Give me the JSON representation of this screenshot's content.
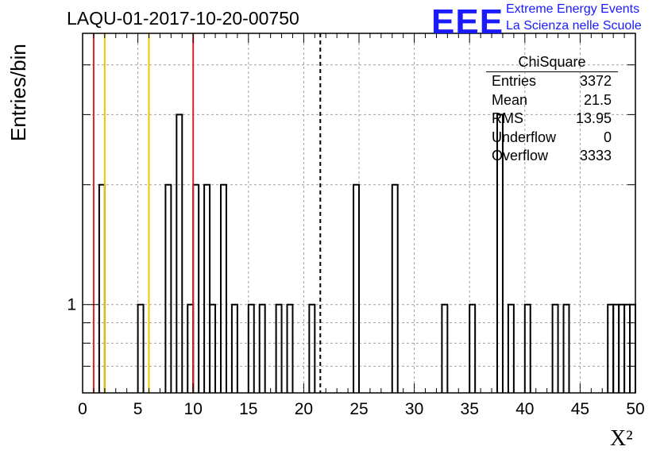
{
  "header": {
    "title": "LAQU-01-2017-10-20-00750",
    "logo_text": "EEE",
    "logo_line1": "Extreme Energy Events",
    "logo_line2": "La Scienza nelle Scuole"
  },
  "stats_box": {
    "title": "ChiSquare",
    "rows": [
      {
        "label": "Entries",
        "value": "3372"
      },
      {
        "label": "Mean",
        "value": "21.5"
      },
      {
        "label": "RMS",
        "value": "13.95"
      },
      {
        "label": "Underflow",
        "value": "0"
      },
      {
        "label": "Overflow",
        "value": "3333"
      }
    ]
  },
  "colors": {
    "red_line": "#e0201b",
    "yellow_line": "#f2c200",
    "grid": "#a0a0a0",
    "logo": "#1a1aff"
  },
  "chart_data": {
    "type": "bar",
    "title": "LAQU-01-2017-10-20-00750",
    "xlabel": "X²",
    "ylabel": "Entries/bin",
    "xlim": [
      0,
      50
    ],
    "ylim": [
      0.6,
      4.8
    ],
    "yscale": "log",
    "bin_width": 0.5,
    "grid": true,
    "x_ticks": [
      "0",
      "5",
      "10",
      "15",
      "20",
      "25",
      "30",
      "35",
      "40",
      "45",
      "50"
    ],
    "y_tick_labels": [
      {
        "value": 1,
        "label": "1"
      }
    ],
    "bins": [
      {
        "x": 1.5,
        "count": 2
      },
      {
        "x": 5.0,
        "count": 1
      },
      {
        "x": 7.5,
        "count": 2
      },
      {
        "x": 8.5,
        "count": 3
      },
      {
        "x": 9.5,
        "count": 1
      },
      {
        "x": 10.0,
        "count": 2
      },
      {
        "x": 11.0,
        "count": 2
      },
      {
        "x": 11.5,
        "count": 1
      },
      {
        "x": 12.5,
        "count": 2
      },
      {
        "x": 13.5,
        "count": 1
      },
      {
        "x": 15.0,
        "count": 1
      },
      {
        "x": 16.0,
        "count": 1
      },
      {
        "x": 17.5,
        "count": 1
      },
      {
        "x": 18.5,
        "count": 1
      },
      {
        "x": 20.5,
        "count": 1
      },
      {
        "x": 24.5,
        "count": 2
      },
      {
        "x": 28.0,
        "count": 2
      },
      {
        "x": 32.5,
        "count": 1
      },
      {
        "x": 35.0,
        "count": 1
      },
      {
        "x": 37.5,
        "count": 3
      },
      {
        "x": 38.5,
        "count": 1
      },
      {
        "x": 40.0,
        "count": 1
      },
      {
        "x": 42.5,
        "count": 1
      },
      {
        "x": 43.5,
        "count": 1
      },
      {
        "x": 47.5,
        "count": 1
      },
      {
        "x": 48.0,
        "count": 1
      },
      {
        "x": 48.5,
        "count": 1
      },
      {
        "x": 49.0,
        "count": 1
      },
      {
        "x": 49.5,
        "count": 1
      }
    ],
    "reference_lines": [
      {
        "x": 1.0,
        "color": "red",
        "style": "solid"
      },
      {
        "x": 2.0,
        "color": "yellow",
        "style": "solid"
      },
      {
        "x": 6.0,
        "color": "yellow",
        "style": "solid"
      },
      {
        "x": 10.0,
        "color": "red",
        "style": "solid"
      },
      {
        "x": 21.5,
        "color": "black",
        "style": "dashed"
      }
    ]
  }
}
